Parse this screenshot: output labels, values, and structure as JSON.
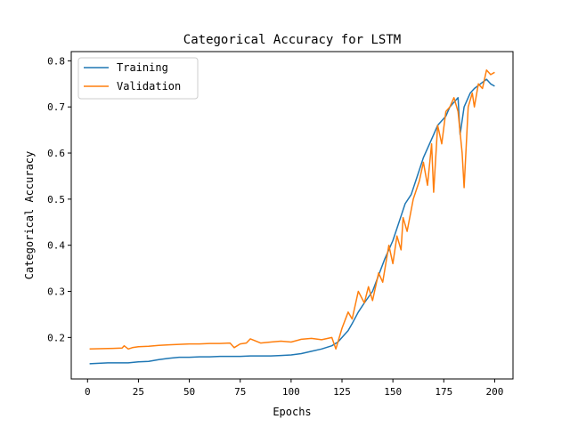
{
  "chart_data": {
    "type": "line",
    "title": "Categorical Accuracy for LSTM",
    "xlabel": "Epochs",
    "ylabel": "Categorical Accuracy",
    "xlim": [
      -8,
      209
    ],
    "ylim": [
      0.11,
      0.82
    ],
    "xticks": [
      0,
      25,
      50,
      75,
      100,
      125,
      150,
      175,
      200
    ],
    "yticks": [
      0.2,
      0.3,
      0.4,
      0.5,
      0.6,
      0.7,
      0.8
    ],
    "ytick_labels": [
      "0.2",
      "0.3",
      "0.4",
      "0.5",
      "0.6",
      "0.7",
      "0.8"
    ],
    "grid": false,
    "legend_position": "top-left",
    "series": [
      {
        "name": "Training",
        "color": "#1f77b4",
        "x": [
          1,
          10,
          20,
          25,
          30,
          35,
          40,
          45,
          50,
          55,
          60,
          65,
          70,
          75,
          80,
          85,
          90,
          95,
          100,
          105,
          110,
          115,
          120,
          123,
          126,
          128,
          130,
          133,
          136,
          140,
          143,
          146,
          150,
          153,
          156,
          159,
          162,
          165,
          168,
          170,
          172,
          174,
          176,
          178,
          180,
          182,
          183,
          185,
          188,
          190,
          193,
          196,
          198,
          200
        ],
        "y": [
          0.143,
          0.145,
          0.145,
          0.147,
          0.148,
          0.152,
          0.155,
          0.157,
          0.157,
          0.158,
          0.158,
          0.159,
          0.159,
          0.159,
          0.16,
          0.16,
          0.16,
          0.161,
          0.162,
          0.165,
          0.17,
          0.175,
          0.182,
          0.19,
          0.205,
          0.215,
          0.23,
          0.255,
          0.275,
          0.3,
          0.335,
          0.37,
          0.41,
          0.45,
          0.49,
          0.51,
          0.55,
          0.59,
          0.62,
          0.64,
          0.66,
          0.67,
          0.68,
          0.7,
          0.71,
          0.72,
          0.64,
          0.7,
          0.73,
          0.74,
          0.75,
          0.76,
          0.75,
          0.745
        ]
      },
      {
        "name": "Validation",
        "color": "#ff7f0e",
        "x": [
          1,
          10,
          17,
          18,
          20,
          22,
          25,
          30,
          35,
          40,
          45,
          50,
          55,
          60,
          65,
          70,
          72,
          75,
          78,
          80,
          85,
          90,
          95,
          100,
          105,
          110,
          115,
          120,
          122,
          125,
          128,
          130,
          133,
          136,
          138,
          140,
          143,
          145,
          148,
          150,
          152,
          154,
          155,
          157,
          160,
          163,
          165,
          167,
          169,
          170,
          172,
          174,
          176,
          178,
          180,
          182,
          184,
          185,
          187,
          189,
          190,
          192,
          194,
          196,
          198,
          200
        ],
        "y": [
          0.175,
          0.176,
          0.177,
          0.182,
          0.175,
          0.178,
          0.18,
          0.181,
          0.183,
          0.184,
          0.185,
          0.186,
          0.186,
          0.187,
          0.187,
          0.188,
          0.178,
          0.186,
          0.188,
          0.197,
          0.188,
          0.19,
          0.192,
          0.19,
          0.196,
          0.198,
          0.195,
          0.2,
          0.175,
          0.22,
          0.255,
          0.24,
          0.3,
          0.275,
          0.31,
          0.28,
          0.34,
          0.32,
          0.4,
          0.36,
          0.42,
          0.39,
          0.46,
          0.43,
          0.5,
          0.54,
          0.58,
          0.53,
          0.62,
          0.515,
          0.66,
          0.62,
          0.69,
          0.7,
          0.72,
          0.69,
          0.6,
          0.525,
          0.7,
          0.73,
          0.7,
          0.75,
          0.74,
          0.78,
          0.77,
          0.775
        ]
      }
    ]
  }
}
